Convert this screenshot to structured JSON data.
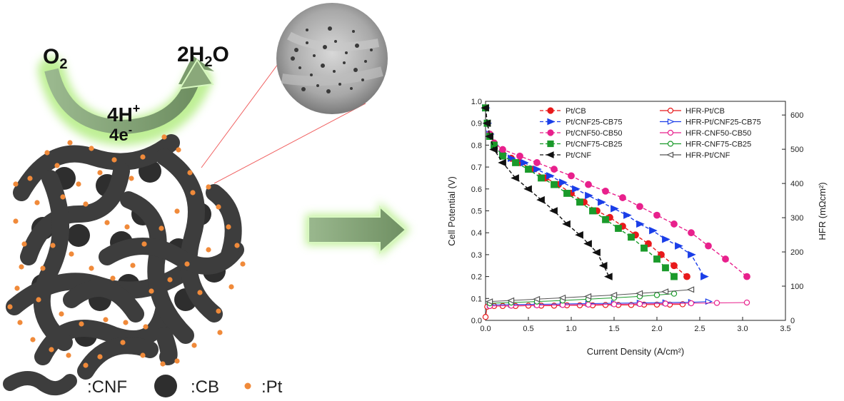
{
  "illustration": {
    "reaction_left": "O",
    "reaction_left_sub": "2",
    "reaction_right_pre": "2H",
    "reaction_right_sub": "2",
    "reaction_right_post": "O",
    "proton": "4H",
    "proton_sup": "+",
    "electron": "4e",
    "electron_sup": "-",
    "legend": {
      "cnf": ":CNF",
      "cb": ":CB",
      "pt": ":Pt"
    },
    "colors": {
      "cnf": "#3d3d3d",
      "cb": "#2e2e2e",
      "pt": "#f08a3a",
      "arrow_glow": "#b8ee8a",
      "arrow_body": "#7a9a6c",
      "guide_line": "#f06060"
    }
  },
  "chart_data": {
    "type": "line",
    "xlabel": "Current Density (A/cm²)",
    "ylabel_left": "Cell Potential (V)",
    "ylabel_right": "HFR (mΩcm²)",
    "xlim": [
      0,
      3.5
    ],
    "ylim_left": [
      0,
      1.0
    ],
    "ylim_right": [
      0,
      640
    ],
    "x_ticks": [
      "0.0",
      "0.5",
      "1.0",
      "1.5",
      "2.0",
      "2.5",
      "3.0",
      "3.5"
    ],
    "y_left_ticks": [
      "0.0",
      "0.1",
      "0.2",
      "0.3",
      "0.4",
      "0.5",
      "0.6",
      "0.7",
      "0.8",
      "0.9",
      "1.0"
    ],
    "y_right_ticks": [
      "0",
      "100",
      "200",
      "300",
      "400",
      "500",
      "600"
    ],
    "legend_placement": "top",
    "grid": false,
    "series": [
      {
        "name": "Pt/CB",
        "axis": "left",
        "color": "#e8191b",
        "marker": "circle",
        "filled": true,
        "x": [
          0.0,
          0.02,
          0.05,
          0.1,
          0.2,
          0.3,
          0.4,
          0.55,
          0.7,
          0.85,
          1.0,
          1.15,
          1.3,
          1.45,
          1.6,
          1.75,
          1.9,
          2.05,
          2.2,
          2.35
        ],
        "y": [
          0.97,
          0.9,
          0.85,
          0.8,
          0.76,
          0.74,
          0.72,
          0.69,
          0.65,
          0.62,
          0.58,
          0.54,
          0.5,
          0.47,
          0.43,
          0.39,
          0.35,
          0.3,
          0.25,
          0.2
        ]
      },
      {
        "name": "Pt/CNF25-CB75",
        "axis": "left",
        "color": "#1a3ee8",
        "marker": "triangle-right",
        "filled": true,
        "x": [
          0.0,
          0.02,
          0.05,
          0.1,
          0.2,
          0.3,
          0.45,
          0.6,
          0.75,
          0.9,
          1.05,
          1.2,
          1.35,
          1.5,
          1.65,
          1.8,
          1.95,
          2.1,
          2.25,
          2.4,
          2.55
        ],
        "y": [
          0.97,
          0.9,
          0.85,
          0.8,
          0.76,
          0.74,
          0.72,
          0.69,
          0.66,
          0.63,
          0.6,
          0.57,
          0.54,
          0.51,
          0.48,
          0.44,
          0.41,
          0.37,
          0.34,
          0.3,
          0.2
        ]
      },
      {
        "name": "Pt/CNF50-CB50",
        "axis": "left",
        "color": "#e8208c",
        "marker": "circle",
        "filled": true,
        "x": [
          0.0,
          0.02,
          0.05,
          0.1,
          0.2,
          0.4,
          0.6,
          0.8,
          1.0,
          1.2,
          1.4,
          1.6,
          1.8,
          2.0,
          2.2,
          2.4,
          2.6,
          2.8,
          3.05
        ],
        "y": [
          0.97,
          0.9,
          0.85,
          0.81,
          0.78,
          0.75,
          0.72,
          0.69,
          0.66,
          0.62,
          0.59,
          0.56,
          0.52,
          0.48,
          0.44,
          0.4,
          0.34,
          0.28,
          0.2
        ]
      },
      {
        "name": "Pt/CNF75-CB25",
        "axis": "left",
        "color": "#1a9a2a",
        "marker": "square",
        "filled": true,
        "x": [
          0.0,
          0.02,
          0.05,
          0.1,
          0.2,
          0.35,
          0.5,
          0.65,
          0.8,
          0.95,
          1.1,
          1.25,
          1.4,
          1.55,
          1.7,
          1.85,
          2.0,
          2.1,
          2.2
        ],
        "y": [
          0.97,
          0.9,
          0.84,
          0.8,
          0.75,
          0.72,
          0.69,
          0.65,
          0.62,
          0.58,
          0.54,
          0.5,
          0.46,
          0.42,
          0.38,
          0.33,
          0.28,
          0.24,
          0.2
        ]
      },
      {
        "name": "Pt/CNF",
        "axis": "left",
        "color": "#111111",
        "marker": "triangle-left",
        "filled": true,
        "x": [
          0.0,
          0.02,
          0.05,
          0.1,
          0.2,
          0.35,
          0.5,
          0.65,
          0.8,
          0.95,
          1.1,
          1.2,
          1.3,
          1.38,
          1.44
        ],
        "y": [
          0.97,
          0.9,
          0.84,
          0.78,
          0.72,
          0.65,
          0.6,
          0.55,
          0.5,
          0.44,
          0.39,
          0.35,
          0.31,
          0.25,
          0.2
        ]
      },
      {
        "name": "HFR-Pt/CB",
        "axis": "right",
        "color": "#e8191b",
        "marker": "circle",
        "filled": false,
        "x": [
          0.0,
          0.02,
          0.05,
          0.1,
          0.2,
          0.35,
          0.5,
          0.65,
          0.8,
          0.95,
          1.1,
          1.25,
          1.4,
          1.55,
          1.7,
          1.85,
          2.0,
          2.15,
          2.3
        ],
        "y": [
          10,
          40,
          42,
          42,
          42,
          42,
          43,
          43,
          43,
          44,
          44,
          44,
          45,
          45,
          45,
          46,
          46,
          46,
          47
        ]
      },
      {
        "name": "HFR-Pt/CNF25-CB75",
        "axis": "right",
        "color": "#1a3ee8",
        "marker": "triangle-right",
        "filled": false,
        "x": [
          0.05,
          0.3,
          0.6,
          0.9,
          1.2,
          1.5,
          1.8,
          2.1,
          2.4,
          2.6
        ],
        "y": [
          45,
          46,
          47,
          48,
          49,
          50,
          51,
          52,
          53,
          55
        ]
      },
      {
        "name": "HFR-CNF50-CB50",
        "axis": "right",
        "color": "#e8208c",
        "marker": "circle",
        "filled": false,
        "x": [
          0.05,
          0.3,
          0.6,
          0.9,
          1.2,
          1.5,
          1.8,
          2.1,
          2.4,
          2.7,
          3.05
        ],
        "y": [
          42,
          43,
          44,
          45,
          46,
          47,
          48,
          49,
          50,
          51,
          52
        ]
      },
      {
        "name": "HFR-CNF75-CB25",
        "axis": "right",
        "color": "#1a9a2a",
        "marker": "circle",
        "filled": false,
        "x": [
          0.05,
          0.3,
          0.6,
          0.9,
          1.2,
          1.5,
          1.8,
          2.0,
          2.2
        ],
        "y": [
          50,
          52,
          55,
          58,
          62,
          66,
          70,
          74,
          78
        ]
      },
      {
        "name": "HFR-Pt/CNF",
        "axis": "right",
        "color": "#555555",
        "marker": "triangle-left",
        "filled": false,
        "x": [
          0.05,
          0.3,
          0.6,
          0.9,
          1.2,
          1.5,
          1.8,
          2.1,
          2.4
        ],
        "y": [
          55,
          58,
          62,
          66,
          70,
          74,
          79,
          84,
          90
        ]
      }
    ]
  }
}
